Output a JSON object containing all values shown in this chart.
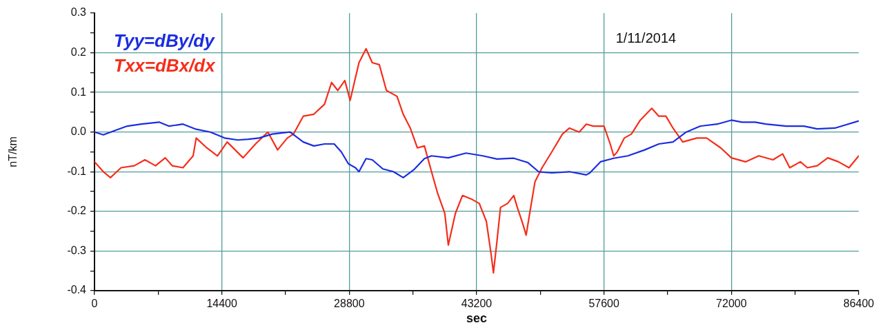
{
  "chart_data": {
    "type": "line",
    "xlabel": "sec",
    "ylabel": "nT/km",
    "annotations": [
      "1/11/2014"
    ],
    "xlim": [
      0,
      86400
    ],
    "xticks": [
      0,
      {
        "value": 7200,
        "label": null
      },
      14400,
      {
        "value": 21600,
        "label": null
      },
      28800,
      {
        "value": 36000,
        "label": null
      },
      43200,
      {
        "value": 50400,
        "label": null
      },
      57600,
      {
        "value": 64800,
        "label": null
      },
      72000,
      {
        "value": 79200,
        "label": null
      },
      86400
    ],
    "ylim": [
      -0.4,
      0.3
    ],
    "yticks": [
      {
        "value": -0.4,
        "label": "-0.4"
      },
      {
        "value": -0.35,
        "label": null
      },
      {
        "value": -0.3,
        "label": "-0.3"
      },
      {
        "value": -0.25,
        "label": null
      },
      {
        "value": -0.2,
        "label": "-0.2"
      },
      {
        "value": -0.15,
        "label": null
      },
      {
        "value": -0.1,
        "label": "-0.1"
      },
      {
        "value": -0.05,
        "label": null
      },
      {
        "value": 0,
        "label": "0.0"
      },
      {
        "value": 0.05,
        "label": null
      },
      {
        "value": 0.1,
        "label": "0.1"
      },
      {
        "value": 0.15,
        "label": null
      },
      {
        "value": 0.2,
        "label": "0.2"
      },
      {
        "value": 0.25,
        "label": null
      },
      {
        "value": 0.3,
        "label": "0.3"
      }
    ],
    "grid": true,
    "legend": "top left",
    "marker": "none",
    "line_style": "solid",
    "series": [
      {
        "name": "Tyy=dBy/dy",
        "color": "#1a2de0",
        "x": [
          0,
          1000,
          2200,
          3700,
          5300,
          7300,
          8400,
          10000,
          11500,
          13100,
          14700,
          16200,
          17400,
          18600,
          20100,
          22100,
          23600,
          24800,
          26000,
          27100,
          27900,
          28700,
          29500,
          29900,
          30700,
          31400,
          32600,
          33800,
          34900,
          36100,
          37300,
          38100,
          40000,
          42000,
          43900,
          45500,
          47400,
          49000,
          50200,
          51700,
          53700,
          55600,
          56000,
          57200,
          58700,
          60300,
          62200,
          63800,
          65400,
          66900,
          68500,
          70400,
          72000,
          73200,
          74700,
          75900,
          78200,
          80200,
          81700,
          83700,
          86400
        ],
        "values": [
          0.0,
          -0.007,
          0.003,
          0.015,
          0.02,
          0.025,
          0.015,
          0.02,
          0.007,
          0.0,
          -0.015,
          -0.02,
          -0.018,
          -0.015,
          -0.005,
          0.0,
          -0.025,
          -0.035,
          -0.03,
          -0.03,
          -0.05,
          -0.08,
          -0.09,
          -0.1,
          -0.067,
          -0.07,
          -0.093,
          -0.1,
          -0.115,
          -0.095,
          -0.067,
          -0.06,
          -0.065,
          -0.053,
          -0.06,
          -0.068,
          -0.066,
          -0.077,
          -0.1,
          -0.103,
          -0.1,
          -0.108,
          -0.103,
          -0.075,
          -0.066,
          -0.06,
          -0.045,
          -0.03,
          -0.025,
          0.0,
          0.015,
          0.02,
          0.03,
          0.025,
          0.025,
          0.02,
          0.015,
          0.015,
          0.008,
          0.01,
          0.028
        ]
      },
      {
        "name": "Txx=dBx/dx",
        "color": "#f52d1a",
        "x": [
          0,
          1000,
          1800,
          3000,
          4500,
          5700,
          6900,
          8000,
          8800,
          10000,
          11150,
          11500,
          12700,
          13900,
          15000,
          16800,
          18200,
          19600,
          20700,
          21800,
          22500,
          23600,
          24800,
          26000,
          26800,
          27500,
          28300,
          28900,
          29900,
          30700,
          31400,
          32200,
          33000,
          34200,
          34900,
          35700,
          36500,
          37300,
          38100,
          38800,
          39600,
          40000,
          40800,
          41600,
          42700,
          43500,
          44300,
          44850,
          45100,
          45500,
          45900,
          46700,
          47400,
          47800,
          48400,
          48800,
          49200,
          49800,
          50600,
          51700,
          52900,
          53700,
          54800,
          55600,
          56400,
          57600,
          58300,
          58700,
          59100,
          59900,
          60700,
          61700,
          63000,
          63800,
          64600,
          65400,
          66500,
          68100,
          69200,
          70800,
          72000,
          73600,
          75100,
          76700,
          77800,
          78600,
          79800,
          80600,
          81700,
          82900,
          84100,
          85300,
          86400
        ],
        "values": [
          -0.075,
          -0.1,
          -0.115,
          -0.09,
          -0.085,
          -0.07,
          -0.085,
          -0.065,
          -0.085,
          -0.09,
          -0.06,
          -0.015,
          -0.04,
          -0.06,
          -0.025,
          -0.065,
          -0.03,
          0.0,
          -0.045,
          -0.015,
          -0.005,
          0.04,
          0.045,
          0.07,
          0.125,
          0.105,
          0.13,
          0.08,
          0.175,
          0.21,
          0.175,
          0.17,
          0.105,
          0.09,
          0.045,
          0.01,
          -0.04,
          -0.035,
          -0.1,
          -0.155,
          -0.205,
          -0.285,
          -0.205,
          -0.16,
          -0.17,
          -0.18,
          -0.225,
          -0.31,
          -0.355,
          -0.275,
          -0.19,
          -0.18,
          -0.16,
          -0.19,
          -0.23,
          -0.26,
          -0.205,
          -0.125,
          -0.09,
          -0.05,
          -0.005,
          0.01,
          0.0,
          0.02,
          0.015,
          0.015,
          -0.03,
          -0.06,
          -0.05,
          -0.015,
          -0.005,
          0.03,
          0.06,
          0.04,
          0.04,
          0.01,
          -0.025,
          -0.015,
          -0.015,
          -0.04,
          -0.065,
          -0.075,
          -0.06,
          -0.07,
          -0.055,
          -0.09,
          -0.075,
          -0.09,
          -0.085,
          -0.065,
          -0.075,
          -0.09,
          -0.06
        ]
      }
    ]
  }
}
